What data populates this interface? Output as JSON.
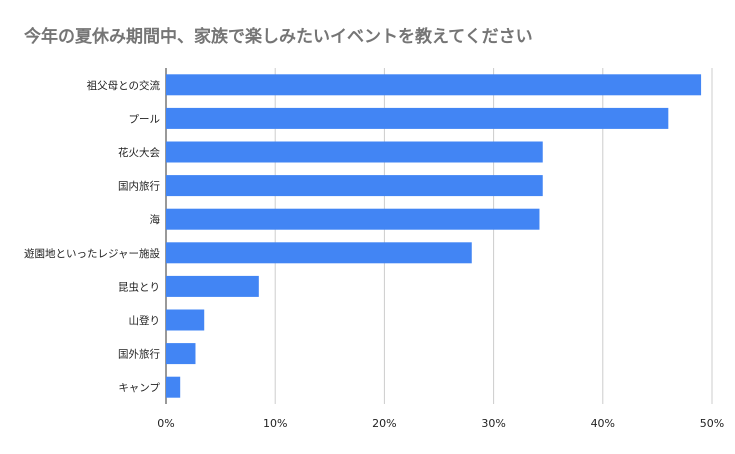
{
  "chart_data": {
    "type": "bar",
    "orientation": "horizontal",
    "title": "今年の夏休み期間中、家族で楽しみたいイベントを教えてください",
    "xlabel": "",
    "ylabel": "",
    "categories": [
      "祖父母との交流",
      "プール",
      "花火大会",
      "国内旅行",
      "海",
      "遊園地といったレジャー施設",
      "昆虫とり",
      "山登り",
      "国外旅行",
      "キャンプ"
    ],
    "values": [
      49,
      46,
      34.5,
      34.5,
      34.2,
      28,
      8.5,
      3.5,
      2.7,
      1.3
    ],
    "xlim": [
      0,
      50
    ],
    "x_ticks": [
      0,
      10,
      20,
      30,
      40,
      50
    ],
    "tick_format": "{v}%",
    "grid": true,
    "legend": "none",
    "colors": {
      "bar": "#4285f4",
      "grid": "#cccccc",
      "title": "#757575",
      "text": "#222222"
    }
  }
}
